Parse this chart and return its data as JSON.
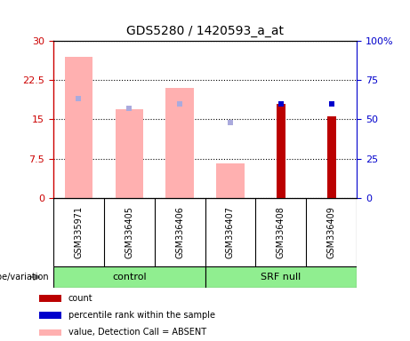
{
  "title": "GDS5280 / 1420593_a_at",
  "samples": [
    "GSM335971",
    "GSM336405",
    "GSM336406",
    "GSM336407",
    "GSM336408",
    "GSM336409"
  ],
  "pink_bar_values": [
    27.0,
    17.0,
    21.0,
    6.5,
    0,
    0
  ],
  "light_blue_values": [
    63.0,
    57.0,
    60.0,
    48.0,
    0,
    0
  ],
  "red_bar_values": [
    0,
    0,
    0,
    0,
    18.0,
    15.5
  ],
  "blue_dot_values": [
    0,
    0,
    0,
    0,
    60.0,
    60.0
  ],
  "ylim_left": [
    0,
    30
  ],
  "ylim_right": [
    0,
    100
  ],
  "yticks_left": [
    0,
    7.5,
    15,
    22.5,
    30
  ],
  "yticks_right": [
    0,
    25,
    50,
    75,
    100
  ],
  "left_color": "#CC0000",
  "right_color": "#0000CC",
  "pink_color": "#FFB0B0",
  "light_blue_color": "#AAAADD",
  "red_bar_color": "#BB0000",
  "blue_dot_color": "#0000CC",
  "background_color": "#FFFFFF",
  "plot_bg_color": "#FFFFFF",
  "sample_area_color": "#C8C8C8",
  "green_color": "#90EE90"
}
